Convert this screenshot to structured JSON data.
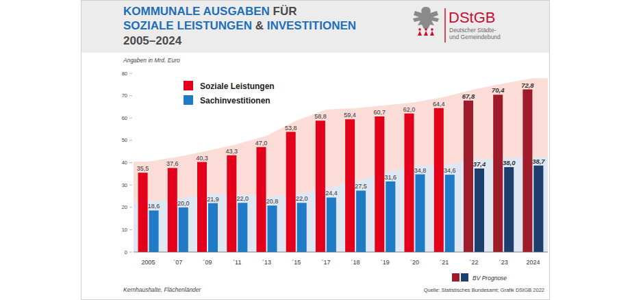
{
  "chart_data": {
    "type": "bar",
    "title": "KOMMUNALE AUSGABEN FÜR SOZIALE LEISTUNGEN & INVESTITIONEN",
    "subtitle": "2005–2024",
    "y_label": "Angaben in Mrd. Euro",
    "annotations": [
      "Kernhaushalte, Flächenländer",
      "Quelle: Statistisches Bundesamt; Grafik DStGB 2022"
    ],
    "prognosis_legend": "BV Prognose",
    "logo": {
      "name": "DStGB",
      "text": [
        "Deutscher Städte-",
        "und Gemeindebund"
      ]
    },
    "categories": [
      "2005",
      "´07",
      "´09",
      "´11",
      "´13",
      "´15",
      "´17",
      "´18",
      "´19",
      "´20",
      "´21",
      "´22",
      "´23",
      "2024"
    ],
    "series": [
      {
        "name": "Soziale Leistungen",
        "colors": [
          "#e2001a",
          "#e2001a",
          "#e2001a",
          "#e2001a",
          "#e2001a",
          "#e2001a",
          "#e2001a",
          "#e2001a",
          "#e2001a",
          "#e2001a",
          "#e2001a",
          "#9e1b2a",
          "#9e1b2a",
          "#9e1b2a"
        ],
        "values": [
          35.5,
          37.6,
          40.3,
          43.3,
          47.0,
          53.8,
          58.8,
          59.4,
          60.7,
          62.0,
          64.4,
          67.8,
          70.4,
          72.8
        ],
        "value_labels": [
          "35,5",
          "37,6",
          "40,3",
          "43,3",
          "47,0",
          "53,8",
          "58,8",
          "59,4",
          "60,7",
          "62,0",
          "64,4",
          "67,8",
          "70,4",
          "72,8"
        ]
      },
      {
        "name": "Sachinvestitionen",
        "colors": [
          "#1f7bc6",
          "#1f7bc6",
          "#1f7bc6",
          "#1f7bc6",
          "#1f7bc6",
          "#1f7bc6",
          "#1f7bc6",
          "#1f7bc6",
          "#1f7bc6",
          "#1f7bc6",
          "#1f7bc6",
          "#1c3f6e",
          "#1c3f6e",
          "#1c3f6e"
        ],
        "values": [
          18.6,
          20.0,
          21.9,
          22.0,
          20.8,
          22.0,
          24.4,
          27.5,
          31.6,
          34.8,
          34.6,
          37.4,
          38.0,
          38.7
        ],
        "value_labels": [
          "18,6",
          "20,0",
          "21,9",
          "22,0",
          "20,8",
          "22,0",
          "24,4",
          "27,5",
          "31,6",
          "34,8",
          "34,6",
          "37,4",
          "38,0",
          "38,7"
        ]
      }
    ],
    "ylim": [
      0,
      80
    ],
    "yticks": [
      0,
      10,
      20,
      30,
      40,
      50,
      60,
      70,
      80
    ],
    "grid": false,
    "legend": "upper left",
    "data_labels": true
  }
}
